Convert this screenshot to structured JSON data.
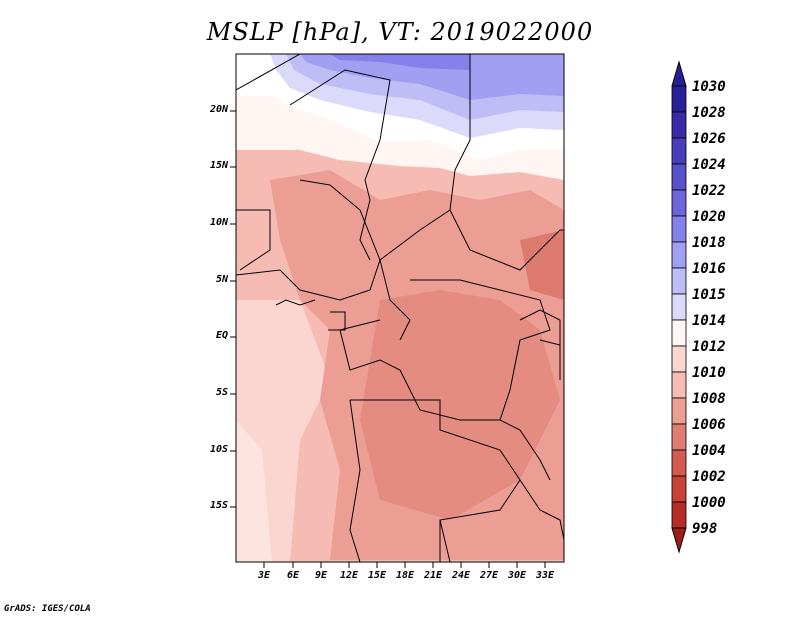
{
  "title": "MSLP [hPa], VT: 2019022000",
  "credit": "GrADS: IGES/COLA",
  "map": {
    "lat_labels": [
      "20N",
      "15N",
      "10N",
      "5N",
      "EQ",
      "5S",
      "10S",
      "15S"
    ],
    "lon_labels": [
      "3E",
      "6E",
      "9E",
      "12E",
      "15E",
      "18E",
      "21E",
      "24E",
      "27E",
      "30E",
      "33E"
    ]
  },
  "colorbar": {
    "levels": [
      "1030",
      "1028",
      "1026",
      "1024",
      "1022",
      "1020",
      "1018",
      "1016",
      "1015",
      "1014",
      "1012",
      "1010",
      "1008",
      "1006",
      "1004",
      "1002",
      "1000",
      "998"
    ],
    "colors": [
      "#2a1e96",
      "#3a2aa8",
      "#4a3cba",
      "#5a4fcc",
      "#6e64dc",
      "#8680ea",
      "#a29ef2",
      "#bfbcf6",
      "#dcdafa",
      "#fff6f4",
      "#fbd6d0",
      "#f6bcb3",
      "#ec9e94",
      "#e07c72",
      "#d55a50",
      "#c84238",
      "#b62c26",
      "#a01e1a"
    ]
  }
}
